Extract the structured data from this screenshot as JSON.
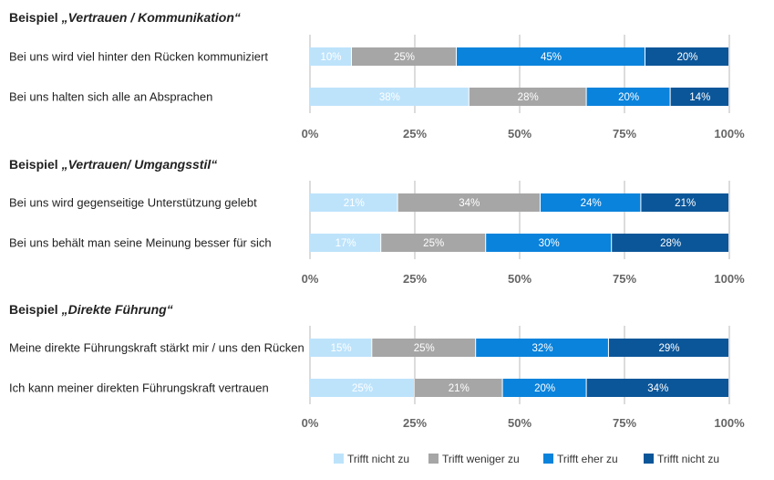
{
  "colors": {
    "series": [
      "#bde3fb",
      "#a6a6a6",
      "#0a83dc",
      "#0b5699"
    ],
    "grid": "#b8b8b8"
  },
  "legend": {
    "items": [
      "Trifft nicht zu",
      "Trifft weniger zu",
      "Trifft eher zu",
      "Trifft nicht zu"
    ]
  },
  "chart_data": [
    {
      "type": "bar",
      "orientation": "horizontal-stacked-100",
      "title_prefix": "Beispiel ",
      "title_emph": "„Vertrauen / Kommunikation“",
      "categories": [
        "Bei uns wird viel hinter den Rücken kommuniziert",
        "Bei uns halten sich alle an Absprachen"
      ],
      "series": [
        {
          "name": "Trifft nicht zu",
          "values": [
            10,
            38
          ]
        },
        {
          "name": "Trifft weniger zu",
          "values": [
            25,
            28
          ]
        },
        {
          "name": "Trifft eher zu",
          "values": [
            45,
            20
          ]
        },
        {
          "name": "Trifft nicht zu",
          "values": [
            20,
            14
          ]
        }
      ],
      "xlim": [
        0,
        100
      ],
      "ticks": [
        "0%",
        "25%",
        "50%",
        "75%",
        "100%"
      ],
      "grid": true
    },
    {
      "type": "bar",
      "orientation": "horizontal-stacked-100",
      "title_prefix": "Beispiel ",
      "title_emph": "„Vertrauen/ Umgangsstil“",
      "categories": [
        "Bei uns wird gegenseitige Unterstützung gelebt",
        "Bei uns behält man seine Meinung besser für sich"
      ],
      "series": [
        {
          "name": "Trifft nicht zu",
          "values": [
            21,
            17
          ]
        },
        {
          "name": "Trifft weniger zu",
          "values": [
            34,
            25
          ]
        },
        {
          "name": "Trifft eher zu",
          "values": [
            24,
            30
          ]
        },
        {
          "name": "Trifft nicht zu",
          "values": [
            21,
            28
          ]
        }
      ],
      "xlim": [
        0,
        100
      ],
      "ticks": [
        "0%",
        "25%",
        "50%",
        "75%",
        "100%"
      ],
      "grid": true
    },
    {
      "type": "bar",
      "orientation": "horizontal-stacked-100",
      "title_prefix": "Beispiel ",
      "title_emph": "„Direkte Führung“",
      "categories": [
        "Meine direkte Führungskraft stärkt mir / uns den Rücken",
        "Ich kann meiner direkten Führungskraft vertrauen"
      ],
      "series": [
        {
          "name": "Trifft nicht zu",
          "values": [
            15,
            25
          ]
        },
        {
          "name": "Trifft weniger zu",
          "values": [
            25,
            21
          ]
        },
        {
          "name": "Trifft eher zu",
          "values": [
            32,
            20
          ]
        },
        {
          "name": "Trifft nicht zu",
          "values": [
            29,
            34
          ]
        }
      ],
      "xlim": [
        0,
        100
      ],
      "ticks": [
        "0%",
        "25%",
        "50%",
        "75%",
        "100%"
      ],
      "grid": true
    }
  ]
}
